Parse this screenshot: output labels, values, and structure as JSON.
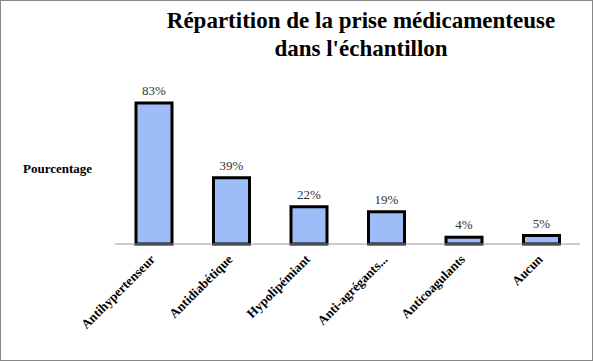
{
  "chart_data": {
    "type": "bar",
    "title": "Répartition de la prise médicamenteuse dans l'échantillon",
    "y_label": "Pourcentage",
    "categories": [
      "Antihypertenseur",
      "Antidiabétique",
      "Hypolipémiant",
      "Anti-agrégants...",
      "Anticoagulants",
      "Aucun"
    ],
    "values": [
      83,
      39,
      22,
      19,
      4,
      5
    ],
    "value_labels": [
      "83%",
      "39%",
      "22%",
      "19%",
      "4%",
      "5%"
    ],
    "color": "#9dbdf9",
    "data_labels": true,
    "grid": false,
    "tick_labels": "x"
  }
}
